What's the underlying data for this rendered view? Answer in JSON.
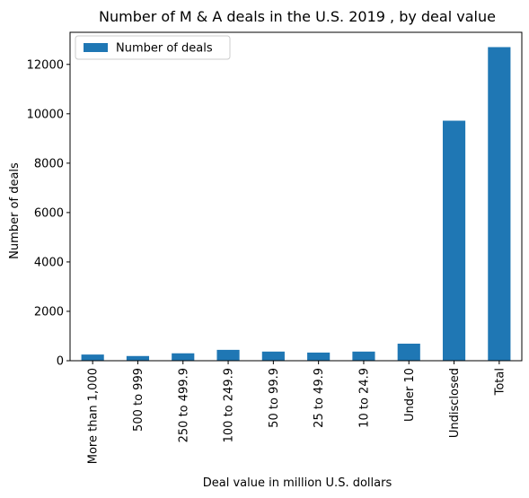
{
  "chart_data": {
    "type": "bar",
    "title": "Number of M & A deals in the U.S. 2019 , by deal value",
    "xlabel": "Deal value in million U.S. dollars",
    "ylabel": "Number of deals",
    "categories": [
      "More than 1,000",
      "500 to 999",
      "250 to 499.9",
      "100 to 249.9",
      "50 to 99.9",
      "25 to 49.9",
      "10 to 24.9",
      "Under 10",
      "Undisclosed",
      "Total"
    ],
    "series": [
      {
        "name": "Number of deals",
        "values": [
          250,
          190,
          300,
          440,
          370,
          330,
          370,
          690,
          9720,
          12700
        ]
      }
    ],
    "ylim": [
      0,
      13300
    ],
    "yticks": [
      0,
      2000,
      4000,
      6000,
      8000,
      10000,
      12000
    ],
    "legend_position": "top-left",
    "grid": false,
    "colors": {
      "bar": "#1f77b4"
    }
  }
}
